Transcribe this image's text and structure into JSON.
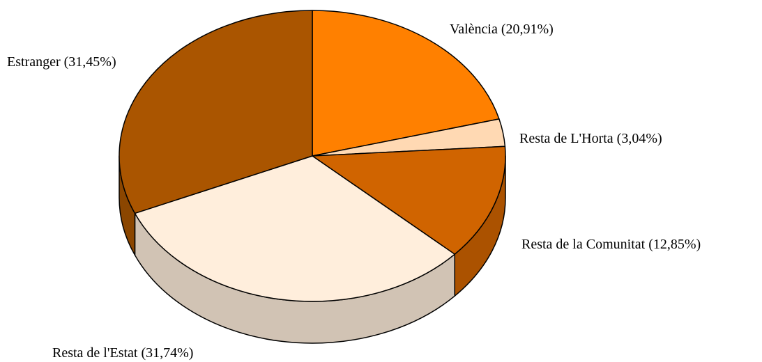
{
  "chart_data": {
    "type": "pie",
    "categories": [
      "València",
      "Resta de L'Horta",
      "Resta de la Comunitat",
      "Resta de l'Estat",
      "Estranger"
    ],
    "values": [
      20.91,
      3.04,
      12.85,
      31.74,
      31.45
    ],
    "value_labels": [
      "(20,91%)",
      "(3,04%)",
      "(12,85%)",
      "(31,74%)",
      "(31,45%)"
    ],
    "colors": [
      "#ff8000",
      "#ffd9b3",
      "#d06400",
      "#ffeedc",
      "#aa5500"
    ]
  }
}
